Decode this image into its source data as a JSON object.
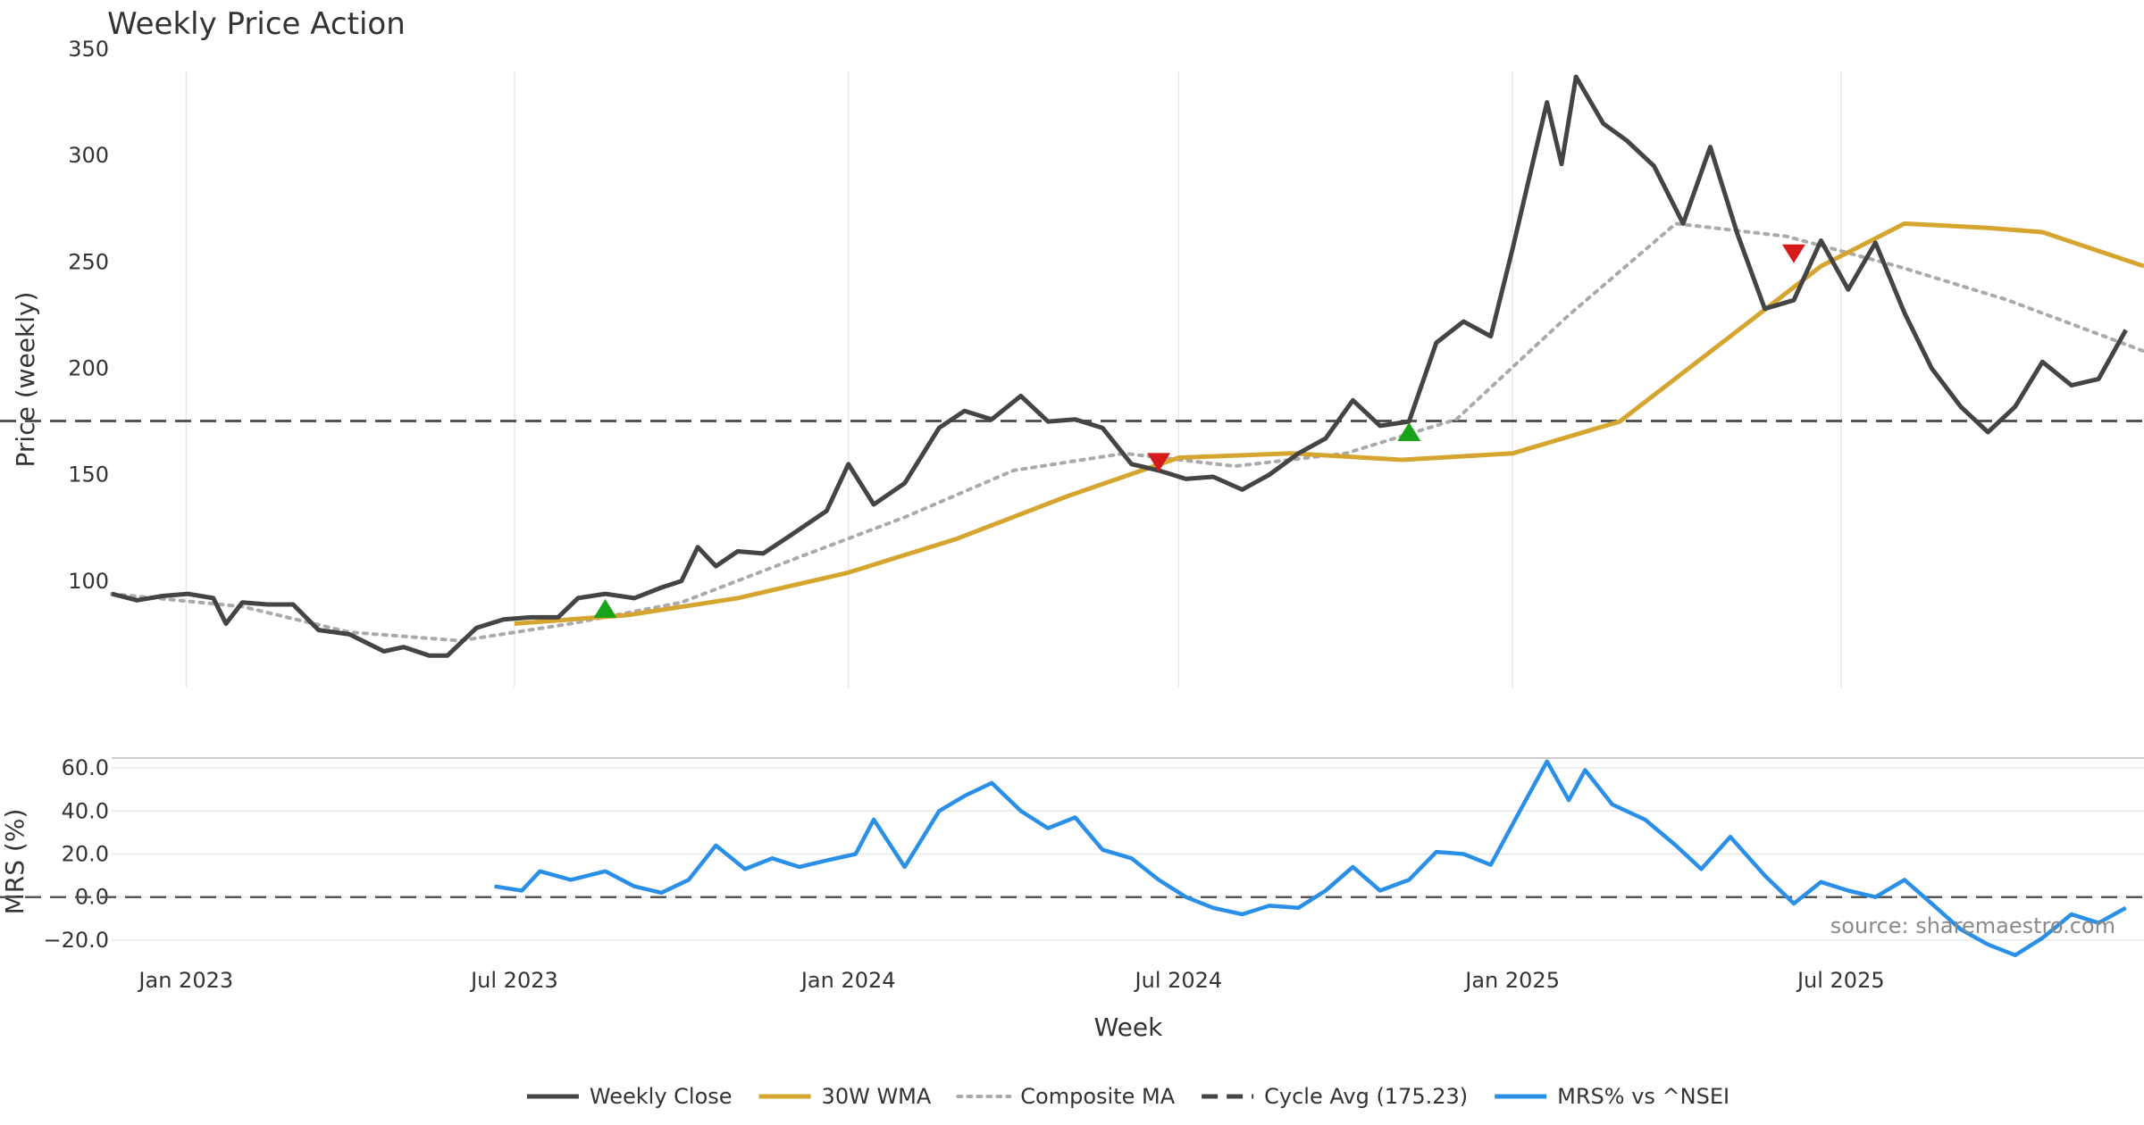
{
  "chart_data": [
    {
      "type": "line",
      "title": "Weekly Price Action",
      "xlabel": "",
      "ylabel": "Price (weekly)",
      "x_axis": "date",
      "xlim": [
        "2022-11-21",
        "2025-12-15"
      ],
      "ylim": [
        50,
        350
      ],
      "y_ticks": [
        100,
        150,
        200,
        250,
        300,
        350
      ],
      "grid": "vertical",
      "reference_line": {
        "value": 175.23,
        "style": "dashed"
      },
      "series": [
        {
          "name": "Weekly Close",
          "color": "#444444",
          "style": "solid",
          "points": [
            [
              "2022-11-21",
              94
            ],
            [
              "2022-12-05",
              91
            ],
            [
              "2022-12-19",
              93
            ],
            [
              "2023-01-02",
              94
            ],
            [
              "2023-01-16",
              92
            ],
            [
              "2023-01-23",
              80
            ],
            [
              "2023-02-01",
              90
            ],
            [
              "2023-02-15",
              89
            ],
            [
              "2023-03-01",
              89
            ],
            [
              "2023-03-15",
              77
            ],
            [
              "2023-04-01",
              75
            ],
            [
              "2023-04-20",
              67
            ],
            [
              "2023-05-01",
              69
            ],
            [
              "2023-05-15",
              65
            ],
            [
              "2023-05-25",
              65
            ],
            [
              "2023-06-10",
              78
            ],
            [
              "2023-06-25",
              82
            ],
            [
              "2023-07-10",
              83
            ],
            [
              "2023-07-25",
              83
            ],
            [
              "2023-08-05",
              92
            ],
            [
              "2023-08-20",
              94
            ],
            [
              "2023-09-05",
              92
            ],
            [
              "2023-09-20",
              97
            ],
            [
              "2023-10-01",
              100
            ],
            [
              "2023-10-10",
              116
            ],
            [
              "2023-10-20",
              107
            ],
            [
              "2023-11-01",
              114
            ],
            [
              "2023-11-15",
              113
            ],
            [
              "2023-12-01",
              122
            ],
            [
              "2023-12-20",
              133
            ],
            [
              "2024-01-01",
              155
            ],
            [
              "2024-01-15",
              136
            ],
            [
              "2024-02-01",
              146
            ],
            [
              "2024-02-20",
              172
            ],
            [
              "2024-03-05",
              180
            ],
            [
              "2024-03-20",
              176
            ],
            [
              "2024-04-05",
              187
            ],
            [
              "2024-04-20",
              175
            ],
            [
              "2024-05-05",
              176
            ],
            [
              "2024-05-20",
              172
            ],
            [
              "2024-06-05",
              155
            ],
            [
              "2024-06-20",
              152
            ],
            [
              "2024-07-05",
              148
            ],
            [
              "2024-07-20",
              149
            ],
            [
              "2024-08-05",
              143
            ],
            [
              "2024-08-20",
              150
            ],
            [
              "2024-09-05",
              160
            ],
            [
              "2024-09-20",
              167
            ],
            [
              "2024-10-05",
              185
            ],
            [
              "2024-10-20",
              173
            ],
            [
              "2024-11-05",
              175
            ],
            [
              "2024-11-20",
              212
            ],
            [
              "2024-12-05",
              222
            ],
            [
              "2024-12-20",
              215
            ],
            [
              "2025-01-01",
              256
            ],
            [
              "2025-01-20",
              325
            ],
            [
              "2025-01-28",
              296
            ],
            [
              "2025-02-05",
              337
            ],
            [
              "2025-02-20",
              315
            ],
            [
              "2025-03-05",
              307
            ],
            [
              "2025-03-20",
              295
            ],
            [
              "2025-04-05",
              268
            ],
            [
              "2025-04-20",
              304
            ],
            [
              "2025-05-05",
              263
            ],
            [
              "2025-05-20",
              228
            ],
            [
              "2025-06-05",
              232
            ],
            [
              "2025-06-20",
              260
            ],
            [
              "2025-07-05",
              237
            ],
            [
              "2025-07-20",
              259
            ],
            [
              "2025-08-05",
              226
            ],
            [
              "2025-08-20",
              200
            ],
            [
              "2025-09-05",
              182
            ],
            [
              "2025-09-20",
              170
            ],
            [
              "2025-10-05",
              182
            ],
            [
              "2025-10-20",
              203
            ],
            [
              "2025-11-05",
              192
            ],
            [
              "2025-11-20",
              195
            ],
            [
              "2025-12-05",
              218
            ]
          ]
        },
        {
          "name": "30W WMA",
          "color": "#d6a530",
          "style": "solid",
          "points": [
            [
              "2023-07-01",
              80
            ],
            [
              "2023-09-01",
              84
            ],
            [
              "2023-11-01",
              92
            ],
            [
              "2024-01-01",
              104
            ],
            [
              "2024-03-01",
              120
            ],
            [
              "2024-05-01",
              140
            ],
            [
              "2024-07-01",
              158
            ],
            [
              "2024-09-01",
              160
            ],
            [
              "2024-11-01",
              157
            ],
            [
              "2025-01-01",
              160
            ],
            [
              "2025-03-01",
              175
            ],
            [
              "2025-05-01",
              215
            ],
            [
              "2025-06-20",
              248
            ],
            [
              "2025-08-05",
              268
            ],
            [
              "2025-09-20",
              266
            ],
            [
              "2025-10-20",
              264
            ],
            [
              "2025-12-15",
              248
            ]
          ]
        },
        {
          "name": "Composite MA",
          "color": "#aaaaaa",
          "style": "dotted",
          "points": [
            [
              "2022-11-21",
              94
            ],
            [
              "2023-02-01",
              88
            ],
            [
              "2023-04-01",
              76
            ],
            [
              "2023-06-01",
              72
            ],
            [
              "2023-08-01",
              80
            ],
            [
              "2023-10-01",
              90
            ],
            [
              "2023-12-01",
              110
            ],
            [
              "2024-02-01",
              130
            ],
            [
              "2024-04-01",
              152
            ],
            [
              "2024-06-01",
              160
            ],
            [
              "2024-08-01",
              154
            ],
            [
              "2024-10-01",
              160
            ],
            [
              "2024-12-01",
              176
            ],
            [
              "2025-02-01",
              225
            ],
            [
              "2025-04-01",
              268
            ],
            [
              "2025-06-01",
              262
            ],
            [
              "2025-08-01",
              248
            ],
            [
              "2025-10-01",
              232
            ],
            [
              "2025-12-15",
              208
            ]
          ]
        }
      ],
      "buy_signals": [
        [
          "2023-08-20",
          87
        ],
        [
          "2024-11-05",
          170
        ]
      ],
      "sell_signals": [
        [
          "2024-06-20",
          156
        ],
        [
          "2025-06-05",
          254
        ]
      ]
    },
    {
      "type": "line",
      "ylabel": "MRS (%)",
      "xlabel": "Week",
      "x_axis": "date",
      "xlim": [
        "2022-11-21",
        "2025-12-15"
      ],
      "ylim": [
        -25,
        65
      ],
      "y_ticks": [
        "60.0",
        "40.0",
        "20.0",
        "0.0",
        "−20.0"
      ],
      "x_ticks": [
        "Jan 2023",
        "Jul 2023",
        "Jan 2024",
        "Jul 2024",
        "Jan 2025",
        "Jul 2025"
      ],
      "reference_line": {
        "value": 0,
        "style": "dashed"
      },
      "series": [
        {
          "name": "MRS% vs ^NSEI",
          "color": "#2a8fe6",
          "style": "solid",
          "points": [
            [
              "2023-06-20",
              5
            ],
            [
              "2023-07-05",
              3
            ],
            [
              "2023-07-15",
              12
            ],
            [
              "2023-08-01",
              8
            ],
            [
              "2023-08-20",
              12
            ],
            [
              "2023-09-05",
              5
            ],
            [
              "2023-09-20",
              2
            ],
            [
              "2023-10-05",
              8
            ],
            [
              "2023-10-20",
              24
            ],
            [
              "2023-11-05",
              13
            ],
            [
              "2023-11-20",
              18
            ],
            [
              "2023-12-05",
              14
            ],
            [
              "2023-12-20",
              17
            ],
            [
              "2024-01-05",
              20
            ],
            [
              "2024-01-15",
              36
            ],
            [
              "2024-02-01",
              14
            ],
            [
              "2024-02-20",
              40
            ],
            [
              "2024-03-05",
              47
            ],
            [
              "2024-03-20",
              53
            ],
            [
              "2024-04-05",
              40
            ],
            [
              "2024-04-20",
              32
            ],
            [
              "2024-05-05",
              37
            ],
            [
              "2024-05-20",
              22
            ],
            [
              "2024-06-05",
              18
            ],
            [
              "2024-06-20",
              8
            ],
            [
              "2024-07-05",
              0
            ],
            [
              "2024-07-20",
              -5
            ],
            [
              "2024-08-05",
              -8
            ],
            [
              "2024-08-20",
              -4
            ],
            [
              "2024-09-05",
              -5
            ],
            [
              "2024-09-20",
              3
            ],
            [
              "2024-10-05",
              14
            ],
            [
              "2024-10-20",
              3
            ],
            [
              "2024-11-05",
              8
            ],
            [
              "2024-11-20",
              21
            ],
            [
              "2024-12-05",
              20
            ],
            [
              "2024-12-20",
              15
            ],
            [
              "2025-01-05",
              40
            ],
            [
              "2025-01-20",
              63
            ],
            [
              "2025-02-01",
              45
            ],
            [
              "2025-02-10",
              59
            ],
            [
              "2025-02-25",
              43
            ],
            [
              "2025-03-15",
              36
            ],
            [
              "2025-04-01",
              24
            ],
            [
              "2025-04-15",
              13
            ],
            [
              "2025-05-01",
              28
            ],
            [
              "2025-05-20",
              10
            ],
            [
              "2025-06-05",
              -3
            ],
            [
              "2025-06-20",
              7
            ],
            [
              "2025-07-05",
              3
            ],
            [
              "2025-07-20",
              0
            ],
            [
              "2025-08-05",
              8
            ],
            [
              "2025-08-20",
              -3
            ],
            [
              "2025-09-05",
              -15
            ],
            [
              "2025-09-20",
              -22
            ],
            [
              "2025-10-05",
              -27
            ],
            [
              "2025-10-20",
              -19
            ],
            [
              "2025-11-05",
              -8
            ],
            [
              "2025-11-20",
              -12
            ],
            [
              "2025-12-05",
              -5
            ]
          ]
        }
      ],
      "source_note": "source: sharemaestro.com"
    }
  ],
  "legend": [
    {
      "label": "Weekly Close",
      "color": "#444444",
      "style": "solid"
    },
    {
      "label": "30W WMA",
      "color": "#d6a530",
      "style": "solid"
    },
    {
      "label": "Composite MA",
      "color": "#aaaaaa",
      "style": "dotted"
    },
    {
      "label": "Cycle Avg (175.23)",
      "color": "#444444",
      "style": "dashed"
    },
    {
      "label": "MRS% vs ^NSEI",
      "color": "#2a8fe6",
      "style": "solid"
    }
  ],
  "colors": {
    "buy_marker": "#19a319",
    "sell_marker": "#d61a1a",
    "grid": "#e8e8e8",
    "reference": "#555555"
  }
}
